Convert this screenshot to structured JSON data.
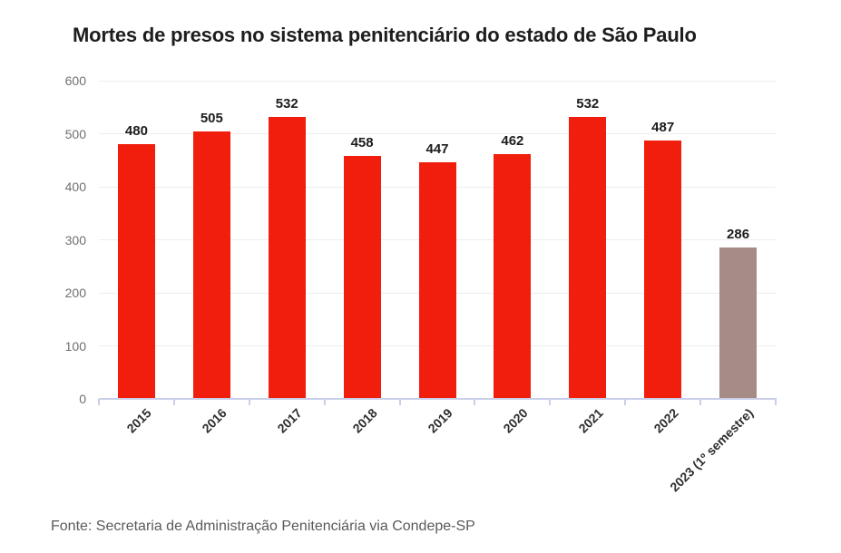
{
  "title": "Mortes de presos no sistema penitenciário do estado de São Paulo",
  "source": "Fonte: Secretaria de Administração Penitenciária via Condepe-SP",
  "chart_data": {
    "type": "bar",
    "title": "Mortes de presos no sistema penitenciário do estado de São Paulo",
    "categories": [
      "2015",
      "2016",
      "2017",
      "2018",
      "2019",
      "2020",
      "2021",
      "2022",
      "2023 (1º semestre)"
    ],
    "values": [
      480,
      505,
      532,
      458,
      447,
      462,
      532,
      487,
      286
    ],
    "bar_colors": [
      "#f11d0d",
      "#f11d0d",
      "#f11d0d",
      "#f11d0d",
      "#f11d0d",
      "#f11d0d",
      "#f11d0d",
      "#f11d0d",
      "#a78b86"
    ],
    "value_labels": [
      480,
      505,
      532,
      458,
      447,
      462,
      532,
      487,
      286
    ],
    "xlabel": "",
    "ylabel": "",
    "ylim": [
      0,
      600
    ],
    "yticks": [
      0,
      100,
      200,
      300,
      400,
      500,
      600
    ],
    "grid": "horizontal",
    "legend": "none",
    "x_label_rotation_deg": -45
  },
  "colors": {
    "bar_default": "#f11d0d",
    "bar_partial_year": "#a78b86",
    "gridline": "#ededed",
    "axis_line": "#c9cfe8",
    "title_text": "#1d1d1d",
    "y_tick_text": "#707070",
    "x_tick_text": "#2d2d2d",
    "value_label_text": "#1c1c1c",
    "source_text": "#5a5a5a",
    "background": "#ffffff"
  }
}
